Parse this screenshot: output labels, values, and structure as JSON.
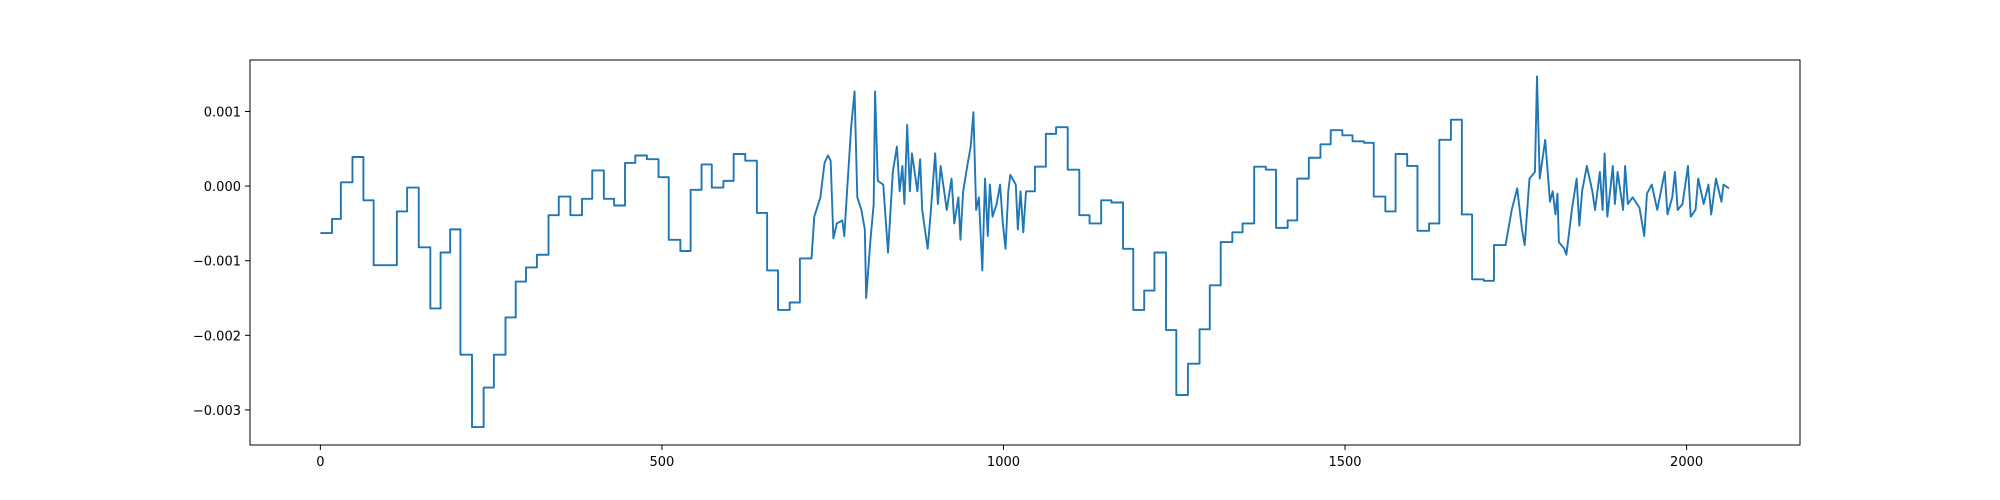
{
  "chart_data": {
    "type": "line",
    "x": [
      0,
      17,
      17,
      30,
      30,
      47,
      47,
      63,
      63,
      78,
      78,
      112,
      112,
      127,
      127,
      144,
      144,
      161,
      161,
      176,
      176,
      190,
      190,
      205,
      205,
      222,
      222,
      239,
      239,
      254,
      254,
      271,
      271,
      286,
      286,
      301,
      301,
      317,
      317,
      334,
      334,
      349,
      349,
      366,
      366,
      383,
      383,
      398,
      398,
      415,
      415,
      430,
      430,
      446,
      446,
      461,
      461,
      478,
      478,
      495,
      495,
      510,
      510,
      527,
      527,
      542,
      542,
      558,
      558,
      573,
      573,
      590,
      590,
      605,
      605,
      622,
      622,
      639,
      639,
      654,
      654,
      670,
      670,
      687,
      687,
      702,
      702,
      719,
      723,
      732,
      738,
      743,
      747,
      751,
      756,
      764,
      767,
      771,
      777,
      782,
      786,
      792,
      797,
      799,
      805,
      810,
      812,
      816,
      824,
      831,
      838,
      844,
      848,
      852,
      855,
      859,
      863,
      866,
      874,
      878,
      881,
      889,
      893,
      900,
      904,
      908,
      917,
      924,
      928,
      934,
      937,
      941,
      947,
      952,
      956,
      960,
      964,
      969,
      973,
      977,
      980,
      984,
      990,
      995,
      999,
      1003,
      1007,
      1010,
      1018,
      1021,
      1025,
      1029,
      1033,
      1046,
      1046,
      1062,
      1062,
      1077,
      1077,
      1094,
      1094,
      1111,
      1111,
      1126,
      1126,
      1143,
      1143,
      1158,
      1158,
      1175,
      1175,
      1190,
      1190,
      1206,
      1206,
      1221,
      1221,
      1238,
      1238,
      1253,
      1253,
      1270,
      1270,
      1287,
      1287,
      1302,
      1302,
      1318,
      1318,
      1335,
      1335,
      1350,
      1350,
      1367,
      1367,
      1384,
      1384,
      1399,
      1399,
      1416,
      1416,
      1430,
      1430,
      1447,
      1447,
      1464,
      1464,
      1479,
      1479,
      1496,
      1496,
      1511,
      1511,
      1528,
      1528,
      1542,
      1542,
      1559,
      1559,
      1574,
      1574,
      1591,
      1591,
      1606,
      1606,
      1623,
      1623,
      1638,
      1638,
      1655,
      1655,
      1671,
      1671,
      1686,
      1686,
      1703,
      1703,
      1718,
      1718,
      1735,
      1744,
      1752,
      1759,
      1763,
      1770,
      1778,
      1781,
      1785,
      1793,
      1800,
      1804,
      1808,
      1811,
      1813,
      1821,
      1824,
      1832,
      1839,
      1843,
      1847,
      1854,
      1862,
      1866,
      1873,
      1877,
      1880,
      1884,
      1892,
      1895,
      1899,
      1907,
      1910,
      1914,
      1921,
      1931,
      1938,
      1942,
      1949,
      1957,
      1968,
      1972,
      1979,
      1983,
      1987,
      1994,
      2002,
      2006,
      2013,
      2017,
      2025,
      2032,
      2036,
      2043,
      2051,
      2054,
      2062
    ],
    "series": [
      {
        "color": "#1f77b4",
        "values": [
          -0.00063,
          -0.00063,
          -0.00044,
          -0.00044,
          5e-05,
          5e-05,
          0.00039,
          0.00039,
          -0.00019,
          -0.00019,
          -0.00106,
          -0.00106,
          -0.00034,
          -0.00034,
          -2e-05,
          -2e-05,
          -0.00082,
          -0.00082,
          -0.00164,
          -0.00164,
          -0.00089,
          -0.00089,
          -0.00058,
          -0.00058,
          -0.00226,
          -0.00226,
          -0.00323,
          -0.00323,
          -0.0027,
          -0.0027,
          -0.00226,
          -0.00226,
          -0.00176,
          -0.00176,
          -0.00128,
          -0.00128,
          -0.00109,
          -0.00109,
          -0.00092,
          -0.00092,
          -0.00039,
          -0.00039,
          -0.00014,
          -0.00014,
          -0.00039,
          -0.00039,
          -0.00017,
          -0.00017,
          0.00021,
          0.00021,
          -0.00017,
          -0.00017,
          -0.00026,
          -0.00026,
          0.00031,
          0.00031,
          0.00041,
          0.00041,
          0.00036,
          0.00036,
          0.00012,
          0.00012,
          -0.00072,
          -0.00072,
          -0.00087,
          -0.00087,
          -5e-05,
          -5e-05,
          0.00029,
          0.00029,
          -2e-05,
          -2e-05,
          7e-05,
          7e-05,
          0.00043,
          0.00043,
          0.00034,
          0.00034,
          -0.00036,
          -0.00036,
          -0.00113,
          -0.00113,
          -0.00166,
          -0.00166,
          -0.00156,
          -0.00156,
          -0.00097,
          -0.00097,
          -0.00041,
          -0.00015,
          0.00031,
          0.00041,
          0.00034,
          -0.0007,
          -0.0005,
          -0.00046,
          -0.00067,
          -7e-05,
          0.00079,
          0.00127,
          -0.00015,
          -0.00032,
          -0.00058,
          -0.0015,
          -0.00075,
          -0.00024,
          0.00127,
          7e-05,
          2e-05,
          -0.00089,
          0.00019,
          0.00053,
          -7e-05,
          0.00027,
          -0.00024,
          0.00082,
          -7e-05,
          0.00044,
          -7e-05,
          0.00036,
          -0.00032,
          -0.00084,
          -0.00041,
          0.00044,
          -0.00024,
          0.00027,
          -0.00032,
          0.0001,
          -0.0005,
          -0.00015,
          -0.00072,
          -7e-05,
          0.00027,
          0.00053,
          0.00099,
          -0.00032,
          -0.00015,
          -0.00113,
          0.0001,
          -0.00067,
          2e-05,
          -0.00041,
          -0.00024,
          2e-05,
          -0.0005,
          -0.00084,
          -7e-05,
          0.00015,
          2e-05,
          -0.00058,
          -7e-05,
          -0.00062,
          -7e-05,
          -7e-05,
          0.00026,
          0.00026,
          0.0007,
          0.0007,
          0.00079,
          0.00079,
          0.00022,
          0.00022,
          -0.00039,
          -0.00039,
          -0.0005,
          -0.0005,
          -0.00019,
          -0.00019,
          -0.00022,
          -0.00022,
          -0.00084,
          -0.00084,
          -0.00166,
          -0.00166,
          -0.0014,
          -0.0014,
          -0.00089,
          -0.00089,
          -0.00193,
          -0.00193,
          -0.0028,
          -0.0028,
          -0.00238,
          -0.00238,
          -0.00192,
          -0.00192,
          -0.00133,
          -0.00133,
          -0.00075,
          -0.00075,
          -0.00062,
          -0.00062,
          -0.0005,
          -0.0005,
          0.00026,
          0.00026,
          0.00022,
          0.00022,
          -0.00056,
          -0.00056,
          -0.00046,
          -0.00046,
          0.0001,
          0.0001,
          0.00038,
          0.00038,
          0.00056,
          0.00056,
          0.00075,
          0.00075,
          0.00068,
          0.00068,
          0.0006,
          0.0006,
          0.00058,
          0.00058,
          -0.00014,
          -0.00014,
          -0.00034,
          -0.00034,
          0.00043,
          0.00043,
          0.00027,
          0.00027,
          -0.0006,
          -0.0006,
          -0.0005,
          -0.0005,
          0.00062,
          0.00062,
          0.00089,
          0.00089,
          -0.00038,
          -0.00038,
          -0.00125,
          -0.00125,
          -0.00127,
          -0.00127,
          -0.00079,
          -0.00079,
          -0.00032,
          -3e-05,
          -0.00058,
          -0.00079,
          0.0001,
          0.00019,
          0.00147,
          0.0001,
          0.00062,
          -0.00021,
          -7e-05,
          -0.00038,
          -0.0001,
          -0.00075,
          -0.00084,
          -0.00092,
          -0.00032,
          0.0001,
          -0.00053,
          -7e-05,
          0.00027,
          -7e-05,
          -0.00032,
          0.00019,
          -0.00032,
          0.00044,
          -0.00041,
          0.00027,
          -0.00024,
          0.00019,
          -0.00032,
          0.00027,
          -0.00024,
          -0.00015,
          -0.00029,
          -0.00067,
          -0.0001,
          2e-05,
          -0.00032,
          0.00019,
          -0.00038,
          -0.00015,
          0.00019,
          -0.00032,
          -0.00024,
          0.00027,
          -0.00041,
          -0.00032,
          0.0001,
          -0.00024,
          2e-05,
          -0.00038,
          0.0001,
          -0.00021,
          2e-05,
          -3e-05
        ]
      }
    ],
    "xlim": [
      -103,
      2166
    ],
    "xticks": [
      0,
      500,
      1000,
      1500,
      2000
    ],
    "ylim": [
      -0.00347,
      0.00169
    ],
    "yticks": [
      {
        "value": -0.003,
        "label": "−0.003"
      },
      {
        "value": -0.002,
        "label": "−0.002"
      },
      {
        "value": -0.001,
        "label": "−0.001"
      },
      {
        "value": 0,
        "label": "0.000"
      },
      {
        "value": 0.001,
        "label": "0.001"
      }
    ],
    "grid": false
  }
}
